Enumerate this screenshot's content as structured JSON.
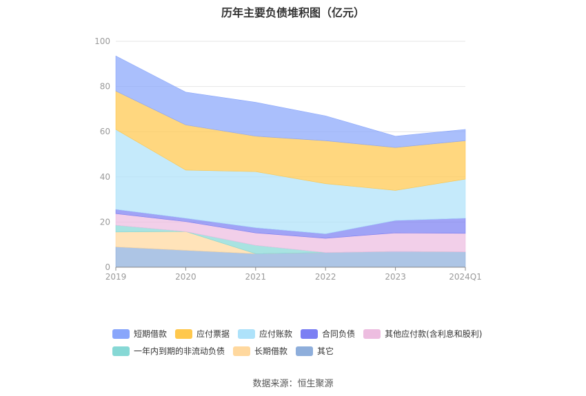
{
  "title": "历年主要负债堆积图（亿元）",
  "source": "数据来源：恒生聚源",
  "chart_data": {
    "type": "area",
    "stacked": true,
    "categories": [
      "2019",
      "2020",
      "2021",
      "2022",
      "2023",
      "2024Q1"
    ],
    "ylim": [
      0,
      100
    ],
    "yticks": [
      0,
      20,
      40,
      60,
      80,
      100
    ],
    "grid": true,
    "legend_position": "bottom",
    "series": [
      {
        "name": "其它",
        "color": "#8eaedb",
        "values": [
          9.0,
          7.5,
          6.0,
          6.5,
          7.0,
          6.8
        ]
      },
      {
        "name": "长期借款",
        "color": "#ffd89e",
        "values": [
          6.6,
          8.3,
          0.0,
          0.0,
          0.0,
          0.0
        ]
      },
      {
        "name": "一年内到期的非流动负债",
        "color": "#86d8d5",
        "values": [
          3.0,
          0.0,
          3.7,
          0.0,
          0.0,
          0.0
        ]
      },
      {
        "name": "其他应付款(含利息和股利)",
        "color": "#edbde0",
        "values": [
          5.1,
          4.4,
          5.5,
          6.3,
          8.2,
          8.2
        ]
      },
      {
        "name": "合同负债",
        "color": "#7b7ff3",
        "values": [
          1.9,
          1.5,
          2.3,
          2.0,
          5.5,
          6.7
        ]
      },
      {
        "name": "应付账款",
        "color": "#aee2fa",
        "values": [
          35.4,
          21.3,
          24.8,
          22.2,
          13.3,
          17.3
        ]
      },
      {
        "name": "应付票据",
        "color": "#ffc84d",
        "values": [
          17.0,
          20.0,
          15.7,
          19.0,
          19.0,
          17.0
        ]
      },
      {
        "name": "短期借款",
        "color": "#89a6fb",
        "values": [
          15.5,
          14.5,
          15.0,
          11.0,
          5.0,
          5.0
        ]
      }
    ],
    "legend": [
      [
        "短期借款",
        "应付票据",
        "应付账款",
        "合同负债",
        "其他应付款(含利息和股利)"
      ],
      [
        "一年内到期的非流动负债",
        "长期借款",
        "其它"
      ]
    ]
  }
}
